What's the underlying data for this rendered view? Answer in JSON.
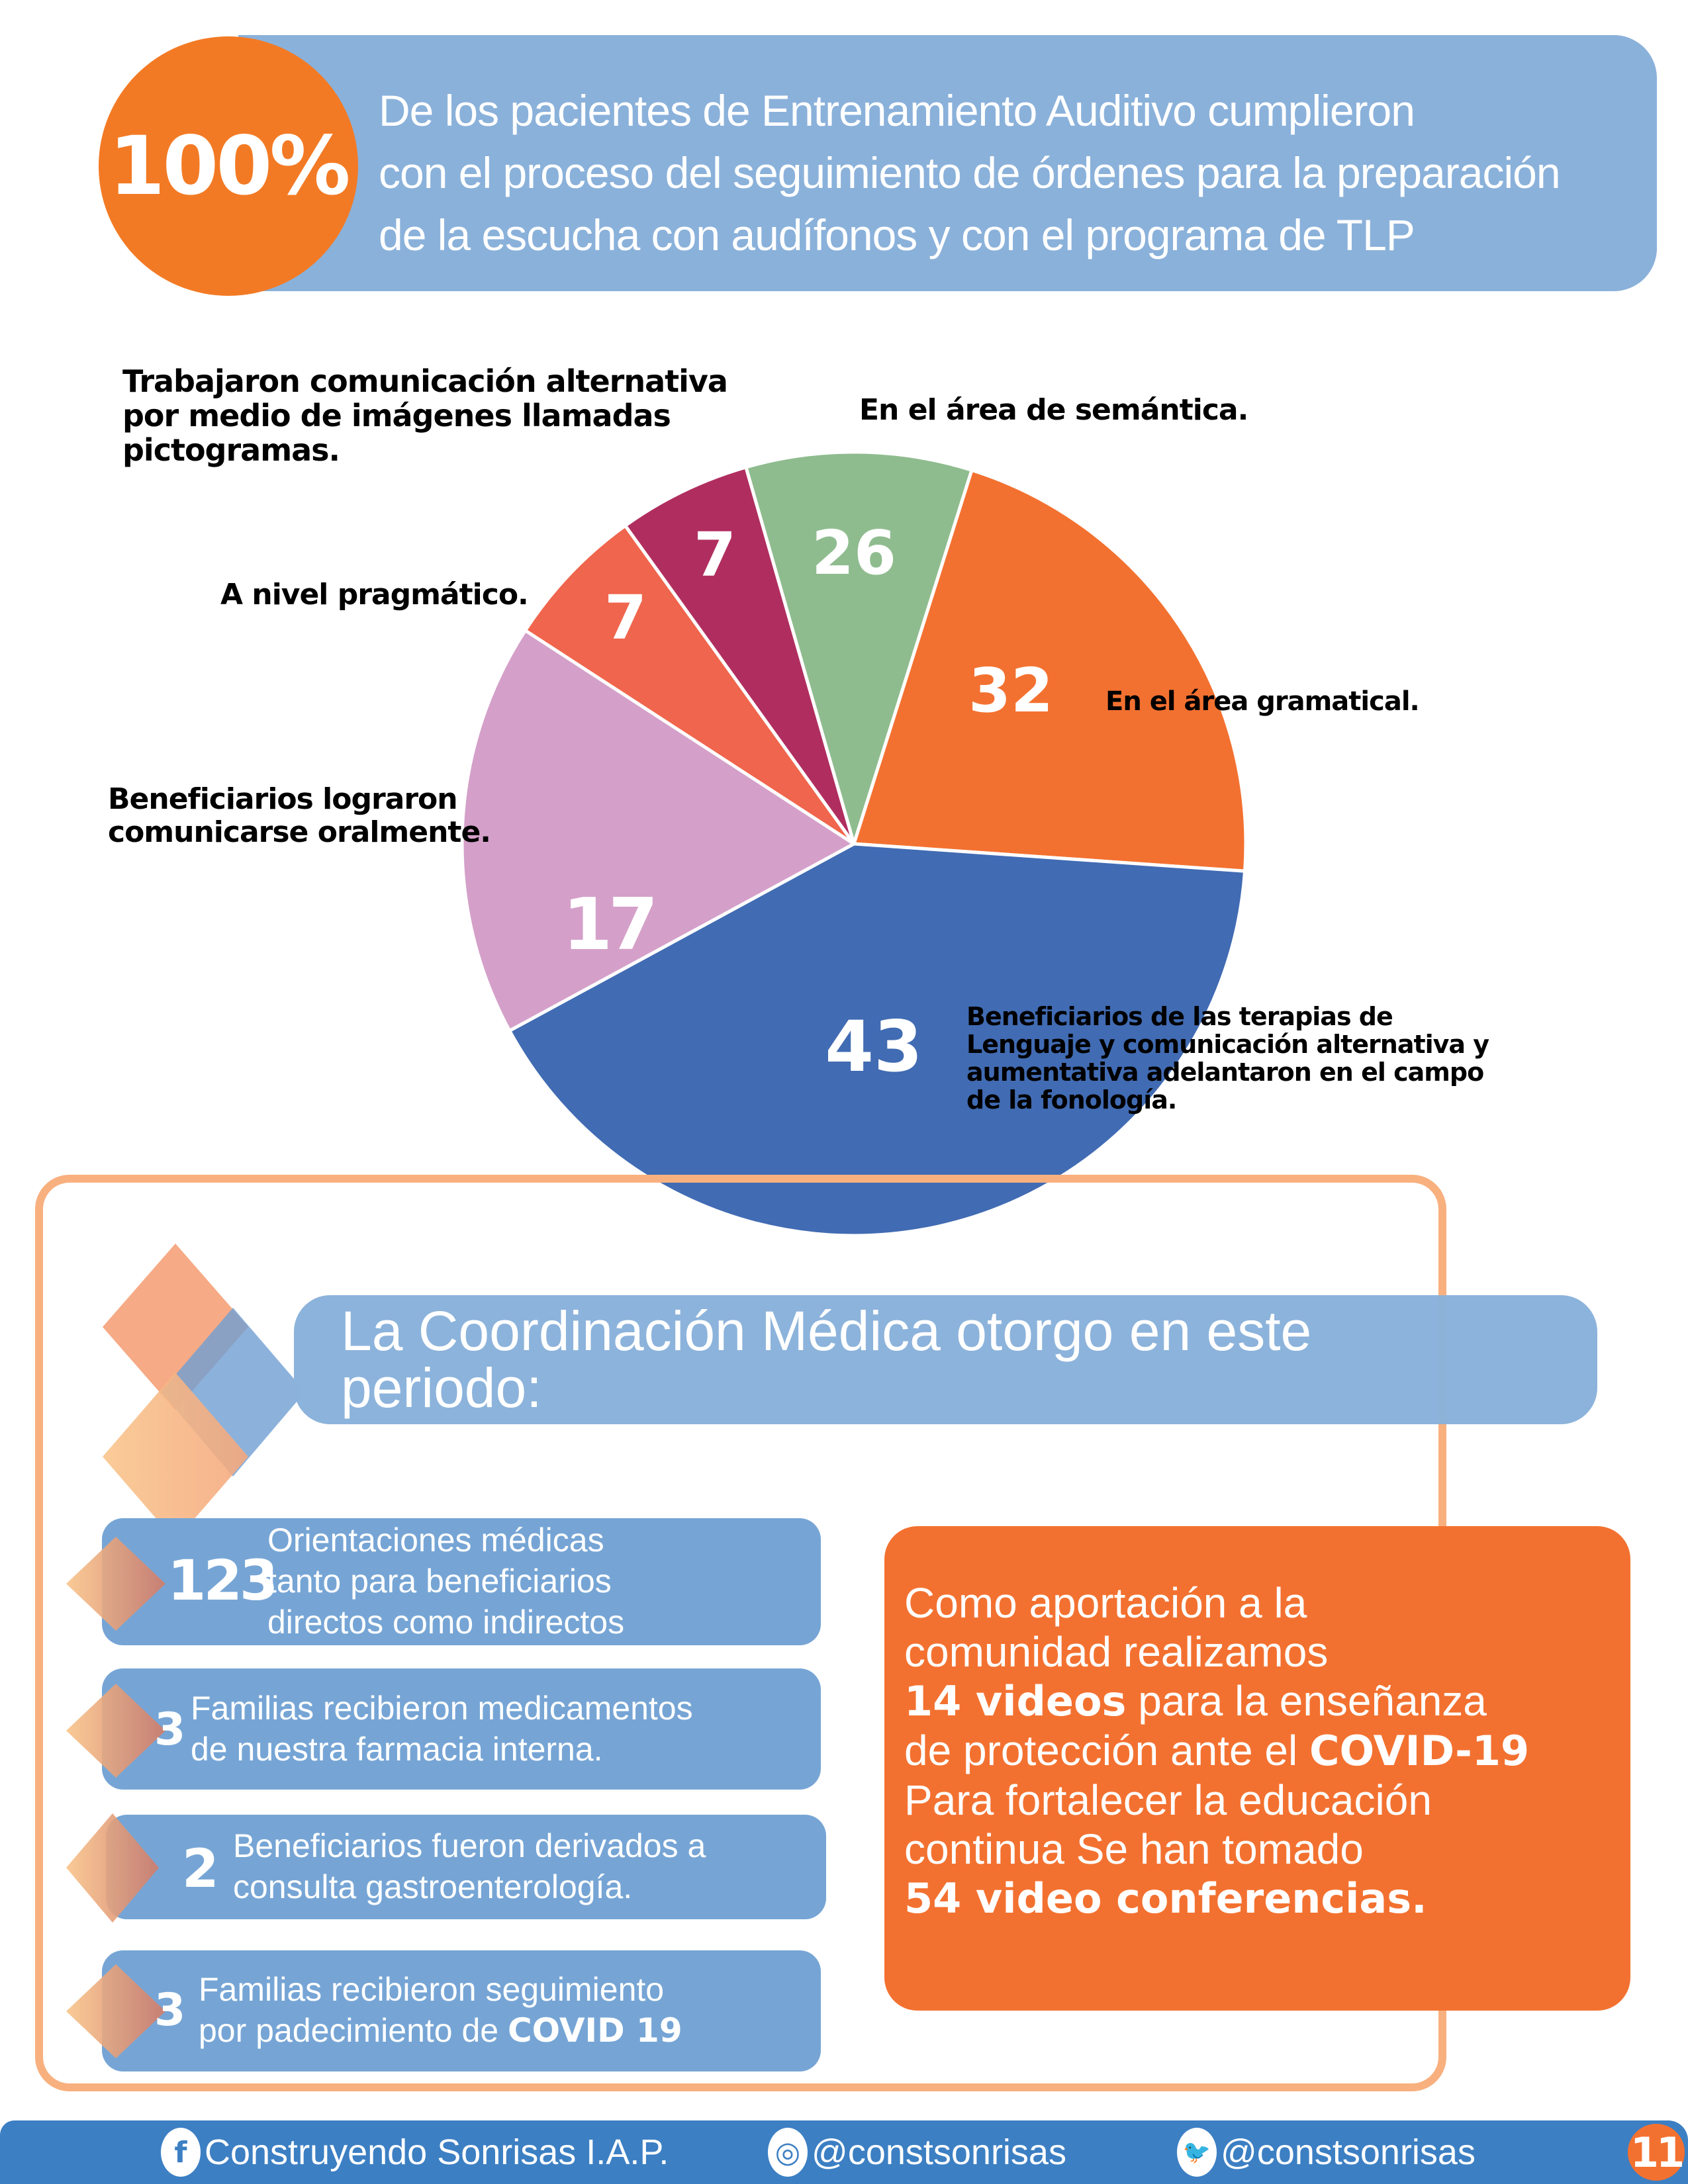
{
  "header": {
    "percent": "100%",
    "lines": [
      "De los pacientes de Entrenamiento Auditivo cumplieron",
      "con el proceso del seguimiento de órdenes para la preparación",
      "de la escucha con audífonos y con el programa de TLP"
    ]
  },
  "chart_data": {
    "type": "pie",
    "title": "",
    "categories": [
      "En el área de semántica.",
      "En el área gramatical.",
      "Beneficiarios de las terapias de Lenguaje y comunicación alternativa y aumentativa adelantaron en el campo de la fonología.",
      "Beneficiarios lograron comunicarse oralmente.",
      "A nivel pragmático.",
      "Trabajaron comunicación alternativa por medio de imágenes llamadas pictogramas."
    ],
    "values": [
      26,
      32,
      43,
      17,
      7,
      7
    ],
    "colors": [
      "#8fbc8f",
      "#f37130",
      "#416bb3",
      "#d4a0c9",
      "#f0654d",
      "#b02e5f"
    ],
    "legend_position": "labels placed around pie"
  },
  "pie": {
    "slices": [
      {
        "value": "26",
        "label_lines": [
          "En el área de semántica."
        ],
        "color": "#8fbc8f",
        "start": 344,
        "end": 377.5
      },
      {
        "value": "32",
        "label_lines": [
          "En el área gramatical."
        ],
        "color": "#f37130",
        "start": 17.5,
        "end": 94
      },
      {
        "value": "43",
        "label_lines": [
          "Beneficiarios de las terapias de",
          "Lenguaje y comunicación alternativa y",
          "aumentativa adelantaron en el campo",
          "de la fonología."
        ],
        "color": "#416bb3",
        "start": 94,
        "end": 241.5
      },
      {
        "value": "17",
        "label_lines": [
          "Beneficiarios lograron",
          "comunicarse oralmente."
        ],
        "color": "#d4a0c9",
        "start": 241.5,
        "end": 303
      },
      {
        "value": "7",
        "label_lines": [
          "A nivel pragmático."
        ],
        "color": "#f0654d",
        "start": 303,
        "end": 324.3
      },
      {
        "value": "7",
        "label_lines": [
          "Trabajaron comunicación alternativa",
          "por medio de imágenes llamadas",
          "pictogramas."
        ],
        "color": "#b02e5f",
        "start": 324.3,
        "end": 344
      }
    ]
  },
  "coordination": {
    "title_lines": [
      "La Coordinación Médica otorgo en este",
      "periodo:"
    ],
    "items": [
      {
        "number": "123",
        "lines": [
          "Orientaciones médicas",
          "tanto para beneficiarios",
          "directos como indirectos"
        ]
      },
      {
        "number": "3",
        "lines": [
          "Familias recibieron medicamentos",
          "de nuestra farmacia interna."
        ]
      },
      {
        "number": "2",
        "lines": [
          "Beneficiarios fueron derivados a",
          "consulta gastroenterología."
        ]
      },
      {
        "number": "3",
        "lines": [
          "Familias recibieron seguimiento",
          "por padecimiento de "
        ],
        "bold_suffix": "COVID 19"
      }
    ]
  },
  "community_box": {
    "line1": "Como aportación a la",
    "line2": "comunidad realizamos",
    "line3_bold": "14 videos",
    "line3_rest": " para la enseñanza",
    "line4_rest": "de protección ante el ",
    "line4_bold": "COVID-19",
    "line5": "Para fortalecer la educación",
    "line6": "continua Se han tomado",
    "line7_bold": "54 video conferencias."
  },
  "footer": {
    "facebook_icon": "f",
    "facebook": "Construyendo Sonrisas I.A.P.",
    "instagram_icon": "◎",
    "instagram": "@constsonrisas",
    "twitter_icon": "🐦",
    "twitter": "@constsonrisas",
    "page_number": "11"
  },
  "colors": {
    "orange": "#f37a24",
    "light_blue": "#8ab1da",
    "item_blue": "#76a5d5",
    "footer_blue": "#3c7fc3",
    "frame_orange": "#f8b07f"
  }
}
